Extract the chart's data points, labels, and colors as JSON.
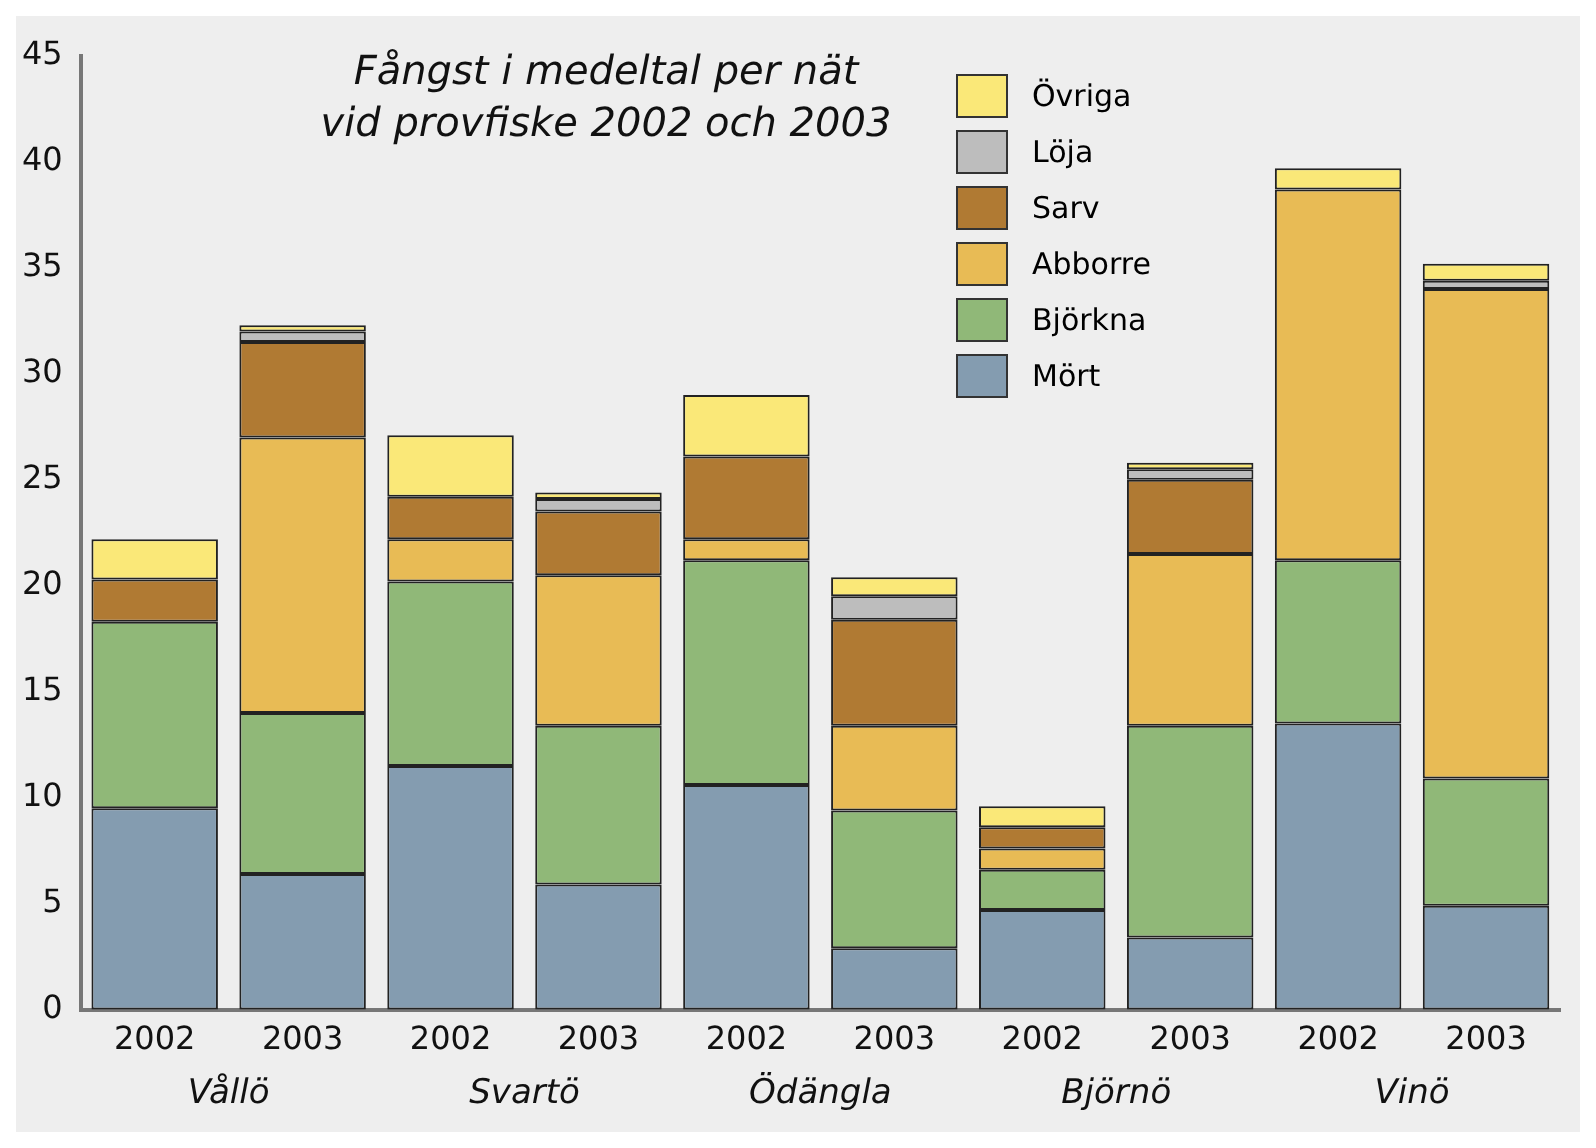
{
  "chart_data": {
    "type": "bar",
    "title": "Fångst i medeltal per nät\nvid provfiske 2002 och 2003",
    "categories": [
      "2002",
      "2003",
      "2002",
      "2003",
      "2002",
      "2003",
      "2002",
      "2003",
      "2002",
      "2003"
    ],
    "annotations": [
      "Vållö",
      "Svartö",
      "Ödängla",
      "Björnö",
      "Vinö"
    ],
    "stacked": true,
    "ylim": [
      0,
      45
    ],
    "yticks": [
      0,
      5,
      10,
      15,
      20,
      25,
      30,
      35,
      40,
      45
    ],
    "grid": false,
    "legend": "top right",
    "series": [
      {
        "name": "Mört",
        "color": "#849cb0",
        "values": [
          9.5,
          6.4,
          11.5,
          5.9,
          10.6,
          2.9,
          4.7,
          3.4,
          13.5,
          4.9
        ]
      },
      {
        "name": "Björkna",
        "color": "#90b878",
        "values": [
          8.8,
          7.6,
          8.7,
          7.5,
          10.6,
          6.5,
          1.9,
          10.0,
          7.7,
          6.0
        ]
      },
      {
        "name": "Abborre",
        "color": "#e8bb55",
        "values": [
          0,
          13.0,
          2.0,
          7.1,
          1.0,
          4.0,
          1.0,
          8.1,
          17.5,
          23.1
        ]
      },
      {
        "name": "Sarv",
        "color": "#b07a33",
        "values": [
          2.0,
          4.5,
          2.0,
          3.0,
          3.9,
          5.0,
          1.0,
          3.5,
          0,
          0
        ]
      },
      {
        "name": "Löja",
        "color": "#bdbdbd",
        "values": [
          0,
          0.5,
          0,
          0.6,
          0,
          1.1,
          0,
          0.5,
          0,
          0.4
        ]
      },
      {
        "name": "Övriga",
        "color": "#fae878",
        "values": [
          1.9,
          0.3,
          2.9,
          0.3,
          2.9,
          0.9,
          1.0,
          0.3,
          1.0,
          0.8
        ]
      }
    ]
  }
}
